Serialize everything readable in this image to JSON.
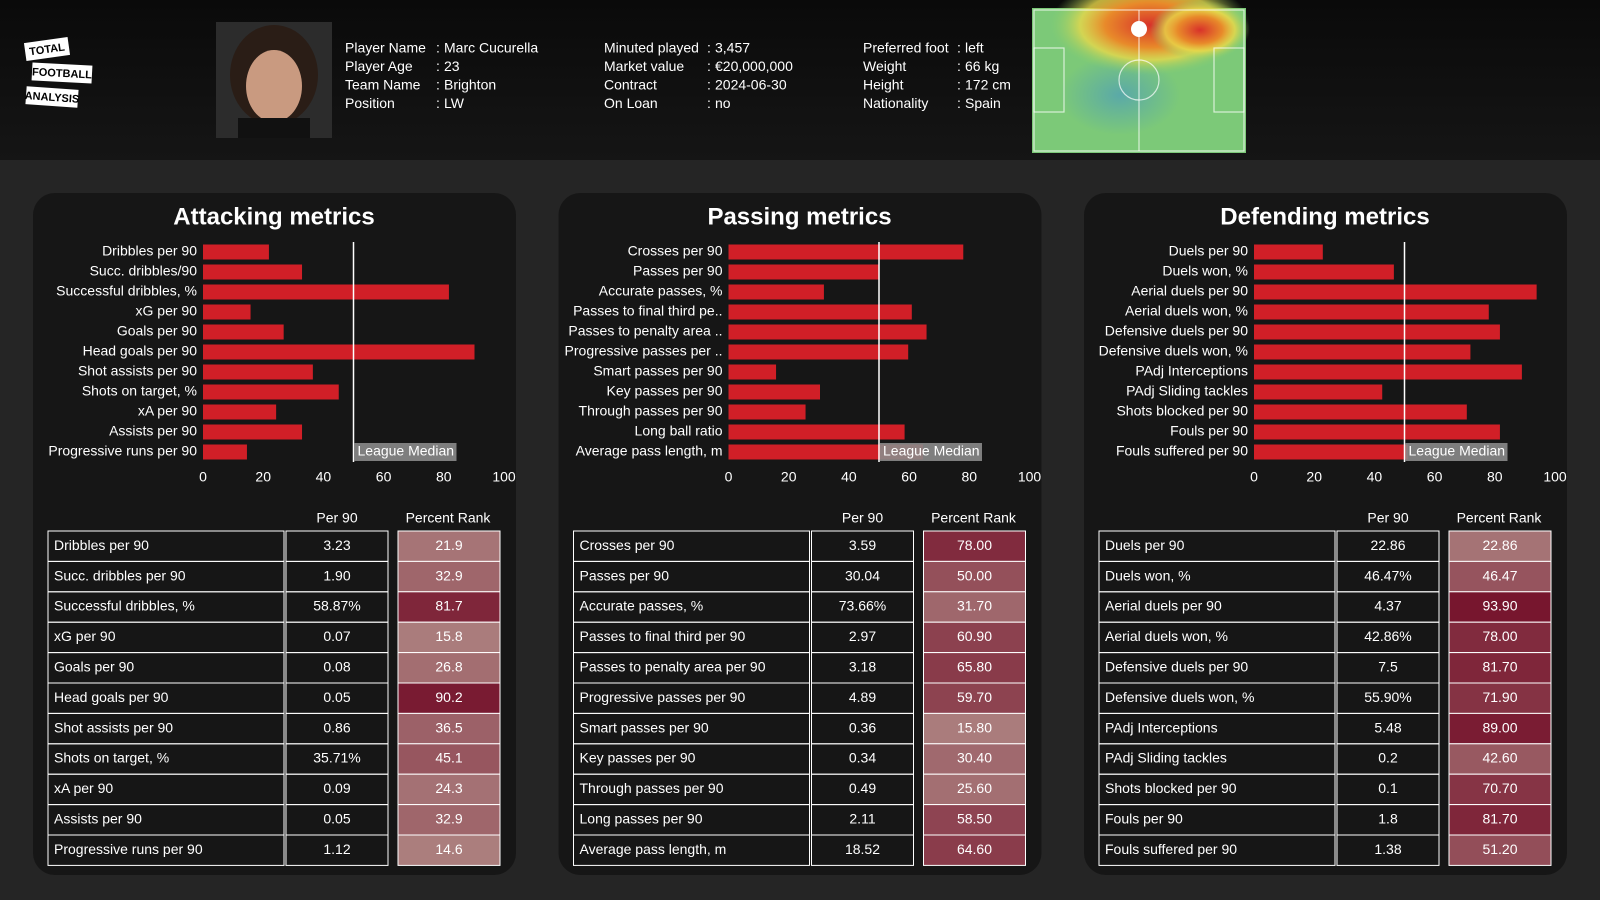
{
  "header": {
    "logo": [
      "TOTAL",
      "FOOTBALL",
      "ANALYSIS"
    ],
    "separator": ":",
    "info": [
      [
        {
          "label": "Player Name",
          "value": "Marc Cucurella"
        },
        {
          "label": "Player Age",
          "value": "23"
        },
        {
          "label": "Team Name",
          "value": "Brighton"
        },
        {
          "label": "Position",
          "value": "LW"
        }
      ],
      [
        {
          "label": "Minuted played",
          "value": "3,457"
        },
        {
          "label": "Market value",
          "value": "€20,000,000"
        },
        {
          "label": "Contract",
          "value": "2024-06-30"
        },
        {
          "label": "On Loan",
          "value": "no"
        }
      ],
      [
        {
          "label": "Preferred foot",
          "value": "left"
        },
        {
          "label": "Weight",
          "value": "66 kg"
        },
        {
          "label": "Height",
          "value": "172 cm"
        },
        {
          "label": "Nationality",
          "value": "Spain"
        }
      ]
    ]
  },
  "chart_data": [
    {
      "type": "bar",
      "title": "Attacking metrics",
      "color": "#d11f27",
      "categories": [
        "Dribbles per 90",
        "Succ. dribbles/90",
        "Successful dribbles, %",
        "xG per 90",
        "Goals per 90",
        "Head goals per 90",
        "Shot assists per 90",
        "Shots on target, %",
        "xA per 90",
        "Assists per 90",
        "Progressive runs per 90"
      ],
      "values": [
        21.9,
        32.9,
        81.7,
        15.8,
        26.8,
        90.2,
        36.5,
        45.1,
        24.3,
        32.9,
        14.6
      ],
      "xlim": [
        0,
        100
      ],
      "xticks": [
        0,
        20,
        40,
        60,
        80,
        100
      ],
      "median": {
        "value": 50,
        "label": "League Median"
      }
    },
    {
      "type": "bar",
      "title": "Passing metrics",
      "color": "#d11f27",
      "categories": [
        "Crosses per 90",
        "Passes per 90",
        "Accurate passes, %",
        "Passes to final third pe..",
        "Passes to penalty area ..",
        "Progressive passes per ..",
        "Smart passes per 90",
        "Key passes per 90",
        "Through passes per 90",
        "Long ball ratio",
        "Average pass length, m"
      ],
      "values": [
        78.0,
        50.0,
        31.7,
        60.9,
        65.8,
        59.7,
        15.8,
        30.4,
        25.6,
        58.5,
        64.6
      ],
      "xlim": [
        0,
        100
      ],
      "xticks": [
        0,
        20,
        40,
        60,
        80,
        100
      ],
      "median": {
        "value": 50,
        "label": "League Median"
      }
    },
    {
      "type": "bar",
      "title": "Defending metrics",
      "color": "#d11f27",
      "categories": [
        "Duels per 90",
        "Duels won, %",
        "Aerial duels per 90",
        "Aerial duels won, %",
        "Defensive duels per 90",
        "Defensive duels won, %",
        "PAdj Interceptions",
        "PAdj Sliding tackles",
        "Shots blocked per 90",
        "Fouls per 90",
        "Fouls suffered per 90"
      ],
      "values": [
        22.86,
        46.47,
        93.9,
        78.0,
        81.7,
        71.9,
        89.0,
        42.6,
        70.7,
        81.7,
        51.2
      ],
      "xlim": [
        0,
        100
      ],
      "xticks": [
        0,
        20,
        40,
        60,
        80,
        100
      ],
      "median": {
        "value": 50,
        "label": "League Median"
      }
    }
  ],
  "tables": [
    {
      "columns": [
        "Per 90",
        "Percent Rank"
      ],
      "rows": [
        [
          "Dribbles per 90",
          "3.23",
          "21.9"
        ],
        [
          "Succ. dribbles per 90",
          "1.90",
          "32.9"
        ],
        [
          "Successful dribbles, %",
          "58.87%",
          "81.7"
        ],
        [
          "xG per 90",
          "0.07",
          "15.8"
        ],
        [
          "Goals per 90",
          "0.08",
          "26.8"
        ],
        [
          "Head goals per 90",
          "0.05",
          "90.2"
        ],
        [
          "Shot assists per 90",
          "0.86",
          "36.5"
        ],
        [
          "Shots on target, %",
          "35.71%",
          "45.1"
        ],
        [
          "xA per 90",
          "0.09",
          "24.3"
        ],
        [
          "Assists per 90",
          "0.05",
          "32.9"
        ],
        [
          "Progressive runs per 90",
          "1.12",
          "14.6"
        ]
      ]
    },
    {
      "columns": [
        "Per 90",
        "Percent Rank"
      ],
      "rows": [
        [
          "Crosses per 90",
          "3.59",
          "78.00"
        ],
        [
          "Passes per 90",
          "30.04",
          "50.00"
        ],
        [
          "Accurate passes, %",
          "73.66%",
          "31.70"
        ],
        [
          "Passes to final third per 90",
          "2.97",
          "60.90"
        ],
        [
          "Passes to penalty area per 90",
          "3.18",
          "65.80"
        ],
        [
          "Progressive passes per 90",
          "4.89",
          "59.70"
        ],
        [
          "Smart passes per 90",
          "0.36",
          "15.80"
        ],
        [
          "Key passes per 90",
          "0.34",
          "30.40"
        ],
        [
          "Through passes per 90",
          "0.49",
          "25.60"
        ],
        [
          "Long passes per 90",
          "2.11",
          "58.50"
        ],
        [
          "Average pass length, m",
          "18.52",
          "64.60"
        ]
      ]
    },
    {
      "columns": [
        "Per 90",
        "Percent Rank"
      ],
      "rows": [
        [
          "Duels per 90",
          "22.86",
          "22.86"
        ],
        [
          "Duels won, %",
          "46.47%",
          "46.47"
        ],
        [
          "Aerial duels per 90",
          "4.37",
          "93.90"
        ],
        [
          "Aerial duels won, %",
          "42.86%",
          "78.00"
        ],
        [
          "Defensive duels per 90",
          "7.5",
          "81.70"
        ],
        [
          "Defensive duels won, %",
          "55.90%",
          "71.90"
        ],
        [
          "PAdj Interceptions",
          "5.48",
          "89.00"
        ],
        [
          "PAdj Sliding tackles",
          "0.2",
          "42.60"
        ],
        [
          "Shots blocked per 90",
          "0.1",
          "70.70"
        ],
        [
          "Fouls per 90",
          "1.8",
          "81.70"
        ],
        [
          "Fouls suffered per 90",
          "1.38",
          "51.20"
        ]
      ]
    }
  ]
}
